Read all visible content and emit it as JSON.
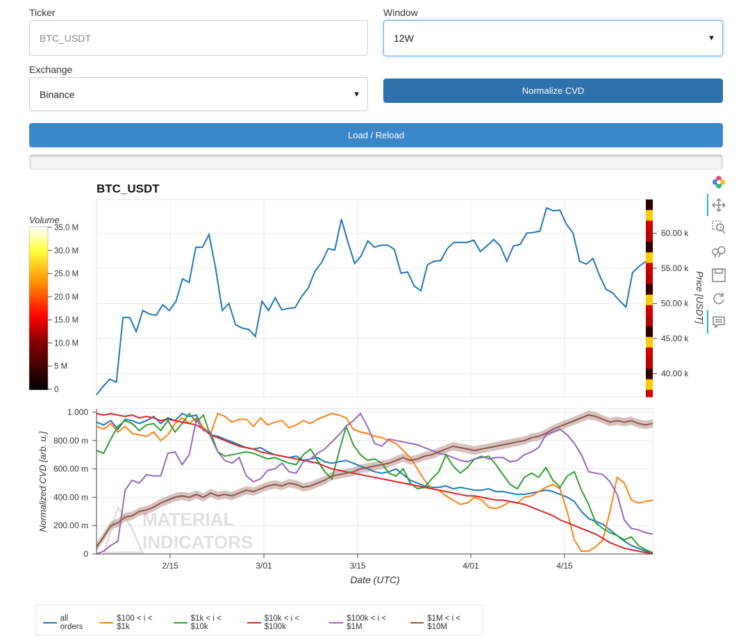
{
  "form": {
    "ticker_label": "Ticker",
    "ticker_placeholder": "BTC_USDT",
    "window_label": "Window",
    "window_value": "12W",
    "exchange_label": "Exchange",
    "exchange_value": "Binance",
    "normalize_label": "Normalize CVD",
    "load_label": "Load / Reload",
    "progress": 0
  },
  "toolbar": {
    "icons": [
      "bokeh-logo-icon",
      "pan-icon",
      "box-zoom-icon",
      "wheel-zoom-icon",
      "save-icon",
      "reset-icon",
      "hover-icon"
    ]
  },
  "colors": {
    "price": "#1f77b4",
    "all": "#1f77b4",
    "s100": "#ff7f0e",
    "s1k": "#2ca02c",
    "s10k": "#d62728",
    "s100k": "#9467bd",
    "s1m": "#8c564b",
    "accent": "#337ab7"
  },
  "price_chart": {
    "title": "BTC_USDT",
    "ylabel": "Price [USDT]",
    "y_ticks": [
      "40.00 k",
      "45.00 k",
      "50.00 k",
      "55.00 k",
      "60.00 k"
    ],
    "colorbar_title": "Volume",
    "colorbar_ticks": [
      "0",
      "5 M",
      "10.0 M",
      "15.0 M",
      "20.0 M",
      "25.0 M",
      "30.0 M",
      "35.0 M"
    ]
  },
  "cvd_chart": {
    "ylabel": "Normalized CVD [arb. u.]",
    "xlabel": "Date (UTC)",
    "y_ticks": [
      "0",
      "200.00 m",
      "400.00 m",
      "600.00 m",
      "800.00 m",
      "1.000"
    ],
    "x_ticks": [
      "2/15",
      "3/01",
      "3/15",
      "4/01",
      "4/15"
    ],
    "watermark_line1": "MATERIAL",
    "watermark_line2": "INDICATORS"
  },
  "legend": {
    "items": [
      "all orders",
      "$100 < i < $1k",
      "$1k < i < $10k",
      "$10k < i < $100k",
      "$100k < i < $1M",
      "$1M < i < $10M"
    ]
  },
  "chart_data": [
    {
      "type": "line",
      "title": "BTC_USDT",
      "ylabel": "Price [USDT]",
      "ylim": [
        36700,
        64800
      ],
      "x_ticks": [
        "2/15",
        "3/01",
        "3/15",
        "4/01",
        "4/15"
      ],
      "series": [
        {
          "values": [
            37000,
            38200,
            39200,
            38800,
            48000,
            48000,
            46000,
            49000,
            48500,
            48300,
            49800,
            49000,
            50300,
            53500,
            53000,
            58000,
            58000,
            59800,
            55000,
            49000,
            50000,
            47000,
            46500,
            46300,
            45300,
            50300,
            49000,
            50800,
            49100,
            49300,
            49400,
            51000,
            52200,
            54600,
            55800,
            57800,
            57600,
            62000,
            58700,
            55700,
            56800,
            58900,
            58000,
            58300,
            58300,
            57700,
            54300,
            54500,
            52500,
            51800,
            55500,
            56000,
            56100,
            57800,
            58700,
            58700,
            58700,
            59000,
            57400,
            58200,
            59100,
            58200,
            56000,
            58200,
            58400,
            60000,
            60100,
            60300,
            63600,
            63200,
            63300,
            61300,
            60000,
            56000,
            55600,
            56400,
            54000,
            52000,
            51500,
            50400,
            49500,
            54400,
            55300,
            56000
          ]
        }
      ]
    },
    {
      "type": "line",
      "ylabel": "Normalized CVD [arb. u.]",
      "xlabel": "Date (UTC)",
      "ylim": [
        0,
        1.0
      ],
      "x_ticks": [
        "2/15",
        "3/01",
        "3/15",
        "4/01",
        "4/15"
      ],
      "series": [
        {
          "name": "all orders",
          "values": [
            0.93,
            0.91,
            0.94,
            0.88,
            0.95,
            0.94,
            0.92,
            0.94,
            0.97,
            0.92,
            0.96,
            0.94,
            0.99,
            0.97,
            0.98,
            0.88,
            0.84,
            0.83,
            0.81,
            0.79,
            0.77,
            0.75,
            0.74,
            0.75,
            0.72,
            0.7,
            0.69,
            0.68,
            0.69,
            0.66,
            0.67,
            0.68,
            0.65,
            0.64,
            0.65,
            0.66,
            0.64,
            0.62,
            0.6,
            0.58,
            0.57,
            0.58,
            0.6,
            0.56,
            0.52,
            0.5,
            0.48,
            0.47,
            0.47,
            0.48,
            0.46,
            0.47,
            0.46,
            0.45,
            0.45,
            0.46,
            0.44,
            0.44,
            0.43,
            0.42,
            0.42,
            0.43,
            0.44,
            0.45,
            0.44,
            0.42,
            0.4,
            0.37,
            0.3,
            0.25,
            0.23,
            0.21,
            0.17,
            0.13,
            0.09,
            0.06,
            0.04,
            0.02,
            0.01
          ]
        },
        {
          "name": "$100 < i < $1k",
          "values": [
            0.9,
            0.88,
            0.92,
            0.86,
            0.9,
            0.85,
            0.84,
            0.83,
            0.86,
            0.8,
            0.84,
            0.92,
            0.96,
            0.92,
            0.96,
            0.89,
            0.85,
            0.99,
            0.97,
            0.93,
            0.95,
            0.95,
            0.9,
            0.96,
            0.91,
            0.93,
            0.94,
            0.89,
            0.91,
            0.94,
            0.92,
            0.95,
            0.97,
            0.99,
            0.98,
            0.96,
            0.88,
            0.86,
            0.85,
            0.83,
            0.82,
            0.8,
            0.78,
            0.73,
            0.68,
            0.6,
            0.52,
            0.46,
            0.45,
            0.41,
            0.38,
            0.35,
            0.36,
            0.4,
            0.38,
            0.33,
            0.32,
            0.34,
            0.37,
            0.36,
            0.4,
            0.41,
            0.44,
            0.47,
            0.49,
            0.46,
            0.3,
            0.1,
            0.02,
            0.02,
            0.05,
            0.1,
            0.3,
            0.54,
            0.5,
            0.38,
            0.36,
            0.37,
            0.38
          ]
        },
        {
          "name": "$1k < i < $10k",
          "values": [
            0.73,
            0.71,
            0.81,
            0.9,
            0.94,
            0.92,
            0.87,
            0.91,
            0.92,
            0.87,
            0.94,
            0.86,
            0.92,
            0.99,
            0.93,
            0.98,
            0.83,
            0.72,
            0.69,
            0.7,
            0.71,
            0.72,
            0.71,
            0.69,
            0.67,
            0.68,
            0.66,
            0.64,
            0.63,
            0.7,
            0.74,
            0.66,
            0.58,
            0.53,
            0.72,
            0.9,
            0.77,
            0.7,
            0.66,
            0.67,
            0.64,
            0.57,
            0.55,
            0.6,
            0.5,
            0.46,
            0.47,
            0.53,
            0.58,
            0.7,
            0.62,
            0.57,
            0.61,
            0.67,
            0.68,
            0.69,
            0.63,
            0.56,
            0.49,
            0.46,
            0.54,
            0.57,
            0.54,
            0.61,
            0.52,
            0.47,
            0.55,
            0.58,
            0.45,
            0.35,
            0.22,
            0.18,
            0.15,
            0.13,
            0.1,
            0.12,
            0.06,
            0.03,
            0.01
          ]
        },
        {
          "name": "$10k < i < $100k",
          "values": [
            0.99,
            0.98,
            0.99,
            0.98,
            0.97,
            0.98,
            0.96,
            0.97,
            0.96,
            0.94,
            0.95,
            0.94,
            0.93,
            0.92,
            0.91,
            0.88,
            0.84,
            0.82,
            0.8,
            0.78,
            0.76,
            0.75,
            0.74,
            0.72,
            0.71,
            0.7,
            0.69,
            0.68,
            0.67,
            0.66,
            0.65,
            0.64,
            0.62,
            0.6,
            0.59,
            0.58,
            0.57,
            0.56,
            0.55,
            0.54,
            0.53,
            0.52,
            0.51,
            0.5,
            0.49,
            0.48,
            0.47,
            0.46,
            0.45,
            0.44,
            0.43,
            0.42,
            0.41,
            0.41,
            0.4,
            0.39,
            0.38,
            0.38,
            0.37,
            0.36,
            0.35,
            0.33,
            0.31,
            0.29,
            0.27,
            0.24,
            0.22,
            0.2,
            0.18,
            0.16,
            0.14,
            0.11,
            0.08,
            0.06,
            0.04,
            0.03,
            0.02,
            0.01,
            0.0
          ]
        },
        {
          "name": "$100k < i < $1M",
          "values": [
            0.0,
            0.02,
            0.06,
            0.09,
            0.45,
            0.52,
            0.5,
            0.56,
            0.55,
            0.55,
            0.71,
            0.72,
            0.63,
            0.7,
            0.95,
            0.87,
            0.86,
            0.72,
            0.66,
            0.64,
            0.68,
            0.55,
            0.51,
            0.53,
            0.59,
            0.6,
            0.64,
            0.58,
            0.57,
            0.65,
            0.67,
            0.71,
            0.74,
            0.79,
            0.84,
            0.9,
            0.94,
            0.99,
            0.9,
            0.78,
            0.76,
            0.81,
            0.8,
            0.79,
            0.78,
            0.77,
            0.75,
            0.73,
            0.71,
            0.7,
            0.68,
            0.66,
            0.65,
            0.67,
            0.69,
            0.67,
            0.68,
            0.68,
            0.65,
            0.66,
            0.7,
            0.72,
            0.75,
            0.84,
            0.86,
            0.88,
            0.84,
            0.78,
            0.7,
            0.58,
            0.57,
            0.56,
            0.51,
            0.42,
            0.24,
            0.18,
            0.17,
            0.15,
            0.14
          ]
        },
        {
          "name": "$1M < i < $10M",
          "values": [
            0.05,
            0.12,
            0.2,
            0.22,
            0.26,
            0.27,
            0.3,
            0.31,
            0.33,
            0.36,
            0.38,
            0.4,
            0.41,
            0.4,
            0.42,
            0.4,
            0.43,
            0.41,
            0.42,
            0.41,
            0.43,
            0.45,
            0.44,
            0.46,
            0.48,
            0.49,
            0.48,
            0.5,
            0.49,
            0.47,
            0.48,
            0.5,
            0.52,
            0.55,
            0.56,
            0.57,
            0.58,
            0.6,
            0.61,
            0.62,
            0.63,
            0.64,
            0.66,
            0.68,
            0.66,
            0.67,
            0.69,
            0.7,
            0.72,
            0.74,
            0.76,
            0.75,
            0.74,
            0.73,
            0.74,
            0.75,
            0.76,
            0.77,
            0.78,
            0.79,
            0.8,
            0.82,
            0.83,
            0.85,
            0.88,
            0.9,
            0.92,
            0.94,
            0.96,
            0.98,
            0.97,
            0.95,
            0.93,
            0.94,
            0.93,
            0.94,
            0.92,
            0.91,
            0.92
          ]
        }
      ]
    }
  ]
}
